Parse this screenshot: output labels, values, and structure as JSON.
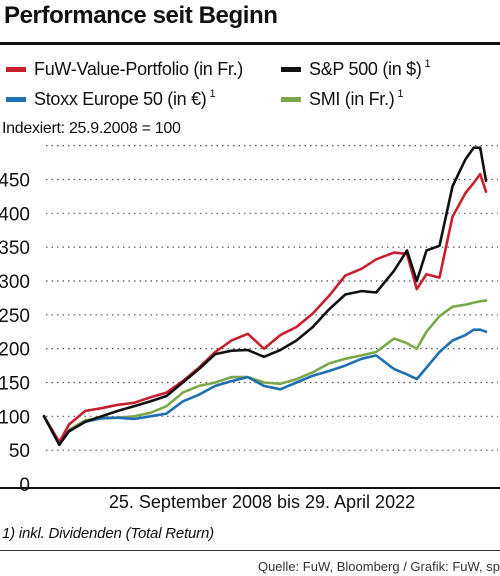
{
  "header": {
    "title": "Performance seit Beginn"
  },
  "legend": [
    {
      "label": "FuW-Value-Portfolio (in Fr.)",
      "note": "",
      "color": "#c8202f"
    },
    {
      "label": "S&P 500 (in $)",
      "note": "1",
      "color": "#111111"
    },
    {
      "label": "Stoxx Europe 50 (in €)",
      "note": "1",
      "color": "#1f6fb2"
    },
    {
      "label": "SMI (in Fr.)",
      "note": "1",
      "color": "#7aa84a"
    }
  ],
  "indexed_note": "Indexiert: 25.9.2008 = 100",
  "footnote": "1) inkl. Dividenden (Total Return)",
  "source": "Quelle: FuW, Bloomberg / Grafik: FuW, sp",
  "chart_data": {
    "type": "line",
    "title": "Performance seit Beginn",
    "xlabel": "25. September 2008 bis 29. April 2022",
    "ylabel": "",
    "ylim": [
      0,
      500
    ],
    "yticks": [
      0,
      50,
      100,
      150,
      200,
      250,
      300,
      350,
      400,
      450
    ],
    "grid": "horizontal dotted",
    "legend_position": "top",
    "x": [
      2008.73,
      2009.2,
      2009.5,
      2010.0,
      2010.5,
      2011.0,
      2011.5,
      2012.0,
      2012.5,
      2013.0,
      2013.5,
      2014.0,
      2014.5,
      2015.0,
      2015.5,
      2016.0,
      2016.5,
      2017.0,
      2017.5,
      2018.0,
      2018.5,
      2018.95,
      2019.5,
      2019.9,
      2020.2,
      2020.5,
      2020.9,
      2021.3,
      2021.7,
      2021.95,
      2022.15,
      2022.33
    ],
    "series": [
      {
        "name": "FuW-Value-Portfolio (in Fr.)",
        "color": "#c8202f",
        "values": [
          100,
          62,
          88,
          108,
          112,
          117,
          120,
          128,
          135,
          152,
          172,
          195,
          212,
          222,
          200,
          220,
          232,
          252,
          278,
          308,
          318,
          332,
          342,
          340,
          288,
          310,
          305,
          395,
          430,
          445,
          458,
          432
        ]
      },
      {
        "name": "S&P 500 (in $)",
        "color": "#111111",
        "values": [
          100,
          58,
          78,
          92,
          100,
          108,
          115,
          122,
          130,
          150,
          170,
          192,
          197,
          198,
          188,
          198,
          212,
          232,
          258,
          280,
          285,
          283,
          315,
          345,
          300,
          345,
          352,
          440,
          480,
          497,
          497,
          448
        ]
      },
      {
        "name": "Stoxx Europe 50 (in €)",
        "color": "#1f6fb2",
        "values": [
          100,
          60,
          78,
          92,
          97,
          98,
          96,
          100,
          104,
          122,
          132,
          145,
          152,
          158,
          145,
          140,
          150,
          160,
          167,
          175,
          185,
          190,
          170,
          162,
          155,
          172,
          195,
          212,
          220,
          228,
          228,
          225
        ]
      },
      {
        "name": "SMI (in Fr.)",
        "color": "#7aa84a",
        "values": [
          100,
          58,
          80,
          94,
          98,
          98,
          100,
          105,
          115,
          135,
          145,
          150,
          158,
          158,
          150,
          148,
          155,
          165,
          178,
          185,
          190,
          195,
          215,
          208,
          200,
          225,
          248,
          262,
          265,
          268,
          270,
          271
        ]
      }
    ]
  }
}
